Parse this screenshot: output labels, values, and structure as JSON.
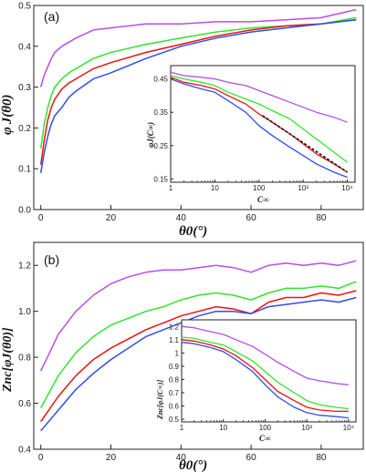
{
  "colors": {
    "purple": "#b84cf0",
    "green": "#2ee62e",
    "red": "#ee1111",
    "blue": "#2f4cf0",
    "fit": "#111111"
  },
  "panels": {
    "a": {
      "label": "(a)",
      "ylabel": "φ J(θ0)",
      "xlabel": "θ0(°)",
      "inset_ylabel": "φJ(C∞)",
      "inset_xlabel": "C∞"
    },
    "b": {
      "label": "(b)",
      "ylabel": "Znc[φJ(θ0)]",
      "xlabel": "θ0(°)",
      "inset_ylabel": "Znc[φJ(C∞)]",
      "inset_xlabel": "C∞"
    }
  },
  "chart_data": [
    {
      "id": "a_main",
      "type": "line",
      "xlim": [
        -2,
        92
      ],
      "ylim": [
        0,
        0.5
      ],
      "xticks": [
        0,
        20,
        40,
        60,
        80
      ],
      "yticks": [
        0,
        0.1,
        0.2,
        0.3,
        0.4,
        0.5
      ],
      "x": [
        0,
        1,
        2,
        3,
        4,
        6,
        8,
        10,
        15,
        20,
        30,
        40,
        50,
        60,
        70,
        80,
        90
      ],
      "series": [
        {
          "color": "purple",
          "values": [
            0.3,
            0.33,
            0.35,
            0.37,
            0.385,
            0.4,
            0.41,
            0.42,
            0.44,
            0.445,
            0.455,
            0.455,
            0.46,
            0.46,
            0.465,
            0.47,
            0.49
          ]
        },
        {
          "color": "green",
          "values": [
            0.15,
            0.21,
            0.25,
            0.28,
            0.3,
            0.32,
            0.335,
            0.345,
            0.37,
            0.385,
            0.405,
            0.42,
            0.435,
            0.445,
            0.45,
            0.455,
            0.47
          ]
        },
        {
          "color": "red",
          "values": [
            0.11,
            0.17,
            0.22,
            0.25,
            0.27,
            0.295,
            0.31,
            0.32,
            0.345,
            0.36,
            0.385,
            0.405,
            0.425,
            0.44,
            0.45,
            0.455,
            0.465
          ]
        },
        {
          "color": "blue",
          "values": [
            0.09,
            0.14,
            0.18,
            0.21,
            0.23,
            0.25,
            0.275,
            0.29,
            0.32,
            0.335,
            0.37,
            0.4,
            0.42,
            0.435,
            0.445,
            0.455,
            0.465
          ]
        }
      ]
    },
    {
      "id": "a_inset",
      "type": "line",
      "xscale": "log",
      "xlim": [
        1,
        15000
      ],
      "ylim": [
        0.14,
        0.49
      ],
      "xticks": [
        1,
        10,
        100,
        1000,
        10000
      ],
      "xticklabels": [
        "1",
        "10",
        "100",
        "10³",
        "10⁴"
      ],
      "yticks": [
        0.15,
        0.25,
        0.35,
        0.45
      ],
      "yticklabels": [
        "0.15",
        "0.25",
        "0.35",
        "0.45"
      ],
      "x": [
        1,
        2,
        5,
        10,
        20,
        50,
        100,
        200,
        500,
        1000,
        2000,
        5000,
        10000
      ],
      "series": [
        {
          "color": "purple",
          "values": [
            0.47,
            0.46,
            0.455,
            0.45,
            0.44,
            0.43,
            0.415,
            0.4,
            0.38,
            0.365,
            0.35,
            0.335,
            0.32
          ]
        },
        {
          "color": "green",
          "values": [
            0.46,
            0.45,
            0.44,
            0.43,
            0.41,
            0.39,
            0.375,
            0.355,
            0.33,
            0.3,
            0.27,
            0.23,
            0.2
          ]
        },
        {
          "color": "red",
          "values": [
            0.455,
            0.44,
            0.43,
            0.42,
            0.4,
            0.375,
            0.345,
            0.32,
            0.285,
            0.255,
            0.225,
            0.195,
            0.17
          ]
        },
        {
          "color": "blue",
          "values": [
            0.45,
            0.435,
            0.42,
            0.41,
            0.385,
            0.35,
            0.31,
            0.28,
            0.245,
            0.22,
            0.195,
            0.17,
            0.155
          ]
        },
        {
          "color": "fit",
          "style": "dashed",
          "x": [
            120,
            10000
          ],
          "values": [
            0.34,
            0.17
          ]
        }
      ]
    },
    {
      "id": "b_main",
      "type": "line",
      "xlim": [
        -2,
        92
      ],
      "ylim": [
        0.4,
        1.3
      ],
      "xticks": [
        0,
        20,
        40,
        60,
        80
      ],
      "yticks": [
        0.4,
        0.6,
        0.8,
        1.0,
        1.2
      ],
      "x": [
        0,
        5,
        10,
        15,
        20,
        25,
        30,
        35,
        40,
        45,
        50,
        55,
        60,
        65,
        70,
        75,
        80,
        85,
        90
      ],
      "series": [
        {
          "color": "purple",
          "values": [
            0.74,
            0.9,
            1.0,
            1.07,
            1.12,
            1.15,
            1.17,
            1.18,
            1.18,
            1.19,
            1.2,
            1.19,
            1.17,
            1.2,
            1.21,
            1.2,
            1.21,
            1.2,
            1.22
          ]
        },
        {
          "color": "green",
          "values": [
            0.58,
            0.72,
            0.82,
            0.89,
            0.94,
            0.97,
            1.0,
            1.02,
            1.05,
            1.07,
            1.08,
            1.07,
            1.05,
            1.08,
            1.1,
            1.1,
            1.11,
            1.1,
            1.13
          ]
        },
        {
          "color": "red",
          "values": [
            0.52,
            0.63,
            0.72,
            0.79,
            0.84,
            0.88,
            0.92,
            0.95,
            0.98,
            1.0,
            1.02,
            1.01,
            0.99,
            1.04,
            1.06,
            1.06,
            1.08,
            1.07,
            1.09
          ]
        },
        {
          "color": "blue",
          "values": [
            0.48,
            0.57,
            0.66,
            0.73,
            0.79,
            0.84,
            0.89,
            0.92,
            0.95,
            0.98,
            1.0,
            1.0,
            0.99,
            1.02,
            1.03,
            1.04,
            1.05,
            1.04,
            1.06
          ]
        }
      ]
    },
    {
      "id": "b_inset",
      "type": "line",
      "xscale": "log",
      "xlim": [
        1,
        15000
      ],
      "ylim": [
        0.48,
        1.25
      ],
      "xticks": [
        1,
        10,
        100,
        1000,
        10000
      ],
      "xticklabels": [
        "1",
        "10",
        "100",
        "10³",
        "10⁴"
      ],
      "yticks": [
        0.5,
        0.6,
        0.7,
        0.8,
        0.9,
        1.0,
        1.1,
        1.2
      ],
      "yticklabels": [
        "0.5",
        "0.6",
        "0.7",
        "0.8",
        "0.9",
        "1",
        "1.1",
        "1.2"
      ],
      "x": [
        1,
        2,
        5,
        10,
        20,
        50,
        100,
        200,
        500,
        1000,
        2000,
        5000,
        10000
      ],
      "series": [
        {
          "color": "purple",
          "values": [
            1.2,
            1.19,
            1.16,
            1.14,
            1.1,
            1.05,
            0.99,
            0.93,
            0.86,
            0.81,
            0.79,
            0.77,
            0.76
          ]
        },
        {
          "color": "green",
          "values": [
            1.12,
            1.11,
            1.08,
            1.06,
            1.01,
            0.94,
            0.86,
            0.78,
            0.7,
            0.64,
            0.61,
            0.59,
            0.58
          ]
        },
        {
          "color": "red",
          "values": [
            1.1,
            1.09,
            1.06,
            1.03,
            0.98,
            0.89,
            0.8,
            0.71,
            0.64,
            0.59,
            0.57,
            0.56,
            0.56
          ]
        },
        {
          "color": "blue",
          "values": [
            1.08,
            1.07,
            1.04,
            1.01,
            0.95,
            0.86,
            0.76,
            0.67,
            0.59,
            0.55,
            0.53,
            0.52,
            0.51
          ]
        }
      ]
    }
  ]
}
